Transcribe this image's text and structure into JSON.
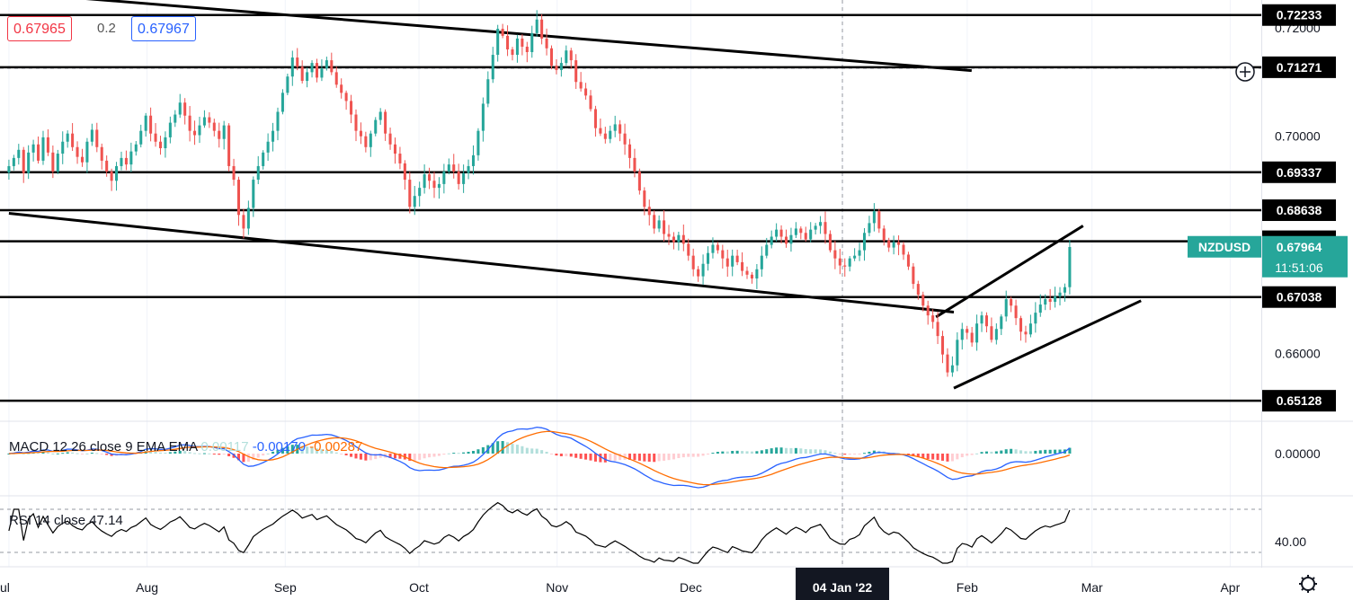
{
  "quote": {
    "bid": "0.67965",
    "spread": "0.2",
    "ask": "0.67967"
  },
  "symbol": {
    "name": "NZDUSD",
    "price": "0.67964",
    "countdown": "11:51:06"
  },
  "colors": {
    "up": "#26a69a",
    "down": "#ef5350",
    "level_bg": "#000000",
    "symbol_bg": "#26a69a",
    "macd": "#2962ff",
    "signal": "#ff6d00",
    "rsi": "#000000"
  },
  "chart_data": {
    "type": "candlestick",
    "instrument": "NZDUSD",
    "ylim": [
      0.6475,
      0.7251
    ],
    "price_ticks": [
      "0.72000",
      "0.70000",
      "0.66000"
    ],
    "price_tick_values": [
      0.72,
      0.7,
      0.66
    ],
    "time_labels": [
      "ul",
      "Aug",
      "Sep",
      "Oct",
      "Nov",
      "Dec",
      "04 Jan '22",
      "Feb",
      "Mar",
      "Apr"
    ],
    "time_label_days": [
      0,
      31,
      62,
      92,
      123,
      153,
      187,
      215,
      243,
      274
    ],
    "xlim_days": [
      -2,
      283
    ],
    "horizontal_levels": [
      "0.72233",
      "0.71271",
      "0.69337",
      "0.68638",
      "0.68066",
      "0.67038",
      "0.65128"
    ],
    "horizontal_level_values": [
      0.72233,
      0.71271,
      0.69337,
      0.68638,
      0.68066,
      0.67038,
      0.65128
    ],
    "trend_lines": [
      {
        "from": [
          "Jul 1",
          0.7265
        ],
        "to": [
          "Feb 2",
          0.7121
        ]
      },
      {
        "from": [
          "Jul 1",
          0.6858
        ],
        "to": [
          "Jan 29",
          0.6676
        ]
      },
      {
        "from": [
          "Jan 25",
          0.6667
        ],
        "to": [
          "Feb 27",
          0.6835
        ]
      },
      {
        "from": [
          "Jan 29",
          0.6536
        ],
        "to": [
          "Mar 12",
          0.6697
        ]
      }
    ],
    "closes": [
      0.6945,
      0.696,
      0.6975,
      0.6932,
      0.697,
      0.6985,
      0.6955,
      0.6998,
      0.697,
      0.6935,
      0.6968,
      0.699,
      0.7005,
      0.698,
      0.6962,
      0.6952,
      0.699,
      0.7012,
      0.698,
      0.6955,
      0.6935,
      0.6918,
      0.6945,
      0.696,
      0.6948,
      0.6972,
      0.6985,
      0.701,
      0.7038,
      0.7005,
      0.699,
      0.6978,
      0.6998,
      0.7025,
      0.704,
      0.7062,
      0.7038,
      0.701,
      0.7002,
      0.702,
      0.7035,
      0.7025,
      0.701,
      0.6995,
      0.702,
      0.6945,
      0.692,
      0.6855,
      0.683,
      0.6868,
      0.692,
      0.6945,
      0.697,
      0.699,
      0.701,
      0.7045,
      0.708,
      0.711,
      0.7145,
      0.7128,
      0.7102,
      0.7118,
      0.7135,
      0.7108,
      0.7125,
      0.714,
      0.7118,
      0.7095,
      0.708,
      0.7065,
      0.704,
      0.701,
      0.7,
      0.698,
      0.7005,
      0.703,
      0.7045,
      0.7005,
      0.6985,
      0.6968,
      0.695,
      0.692,
      0.687,
      0.689,
      0.6905,
      0.693,
      0.6918,
      0.6905,
      0.6912,
      0.6935,
      0.6948,
      0.6935,
      0.6912,
      0.6932,
      0.6945,
      0.6965,
      0.701,
      0.706,
      0.7105,
      0.715,
      0.7198,
      0.7185,
      0.716,
      0.715,
      0.718,
      0.7165,
      0.7155,
      0.719,
      0.7215,
      0.718,
      0.7162,
      0.713,
      0.7122,
      0.7135,
      0.7158,
      0.714,
      0.71,
      0.7088,
      0.7075,
      0.705,
      0.7015,
      0.7005,
      0.6995,
      0.701,
      0.7022,
      0.7005,
      0.6985,
      0.696,
      0.6935,
      0.69,
      0.687,
      0.6855,
      0.683,
      0.6845,
      0.682,
      0.6815,
      0.6805,
      0.6818,
      0.6802,
      0.678,
      0.6755,
      0.6742,
      0.6765,
      0.6785,
      0.68,
      0.679,
      0.6775,
      0.676,
      0.678,
      0.6768,
      0.6752,
      0.6745,
      0.6738,
      0.6755,
      0.678,
      0.68,
      0.6815,
      0.6828,
      0.6815,
      0.6802,
      0.6818,
      0.683,
      0.6822,
      0.681,
      0.6828,
      0.6835,
      0.6842,
      0.682,
      0.679,
      0.6775,
      0.6762,
      0.676,
      0.6775,
      0.678,
      0.679,
      0.6822,
      0.684,
      0.6862,
      0.683,
      0.6808,
      0.6795,
      0.6805,
      0.68,
      0.6782,
      0.676,
      0.6728,
      0.6708,
      0.6688,
      0.667,
      0.6658,
      0.6632,
      0.6598,
      0.6565,
      0.6578,
      0.6625,
      0.6645,
      0.6638,
      0.662,
      0.6655,
      0.667,
      0.665,
      0.6625,
      0.6645,
      0.6668,
      0.67,
      0.6688,
      0.6665,
      0.664,
      0.6635,
      0.6655,
      0.6675,
      0.669,
      0.67,
      0.6695,
      0.6705,
      0.6712,
      0.6722,
      0.6796
    ],
    "macd": {
      "label": "MACD 12 26 close 9 EMA EMA",
      "histogram": "0.00117",
      "macd": "-0.00170",
      "signal": "-0.00287",
      "zero_tick": "0.00000"
    },
    "rsi": {
      "label": "RSI 14 close",
      "value": "47.14",
      "tick": "40.00"
    }
  }
}
